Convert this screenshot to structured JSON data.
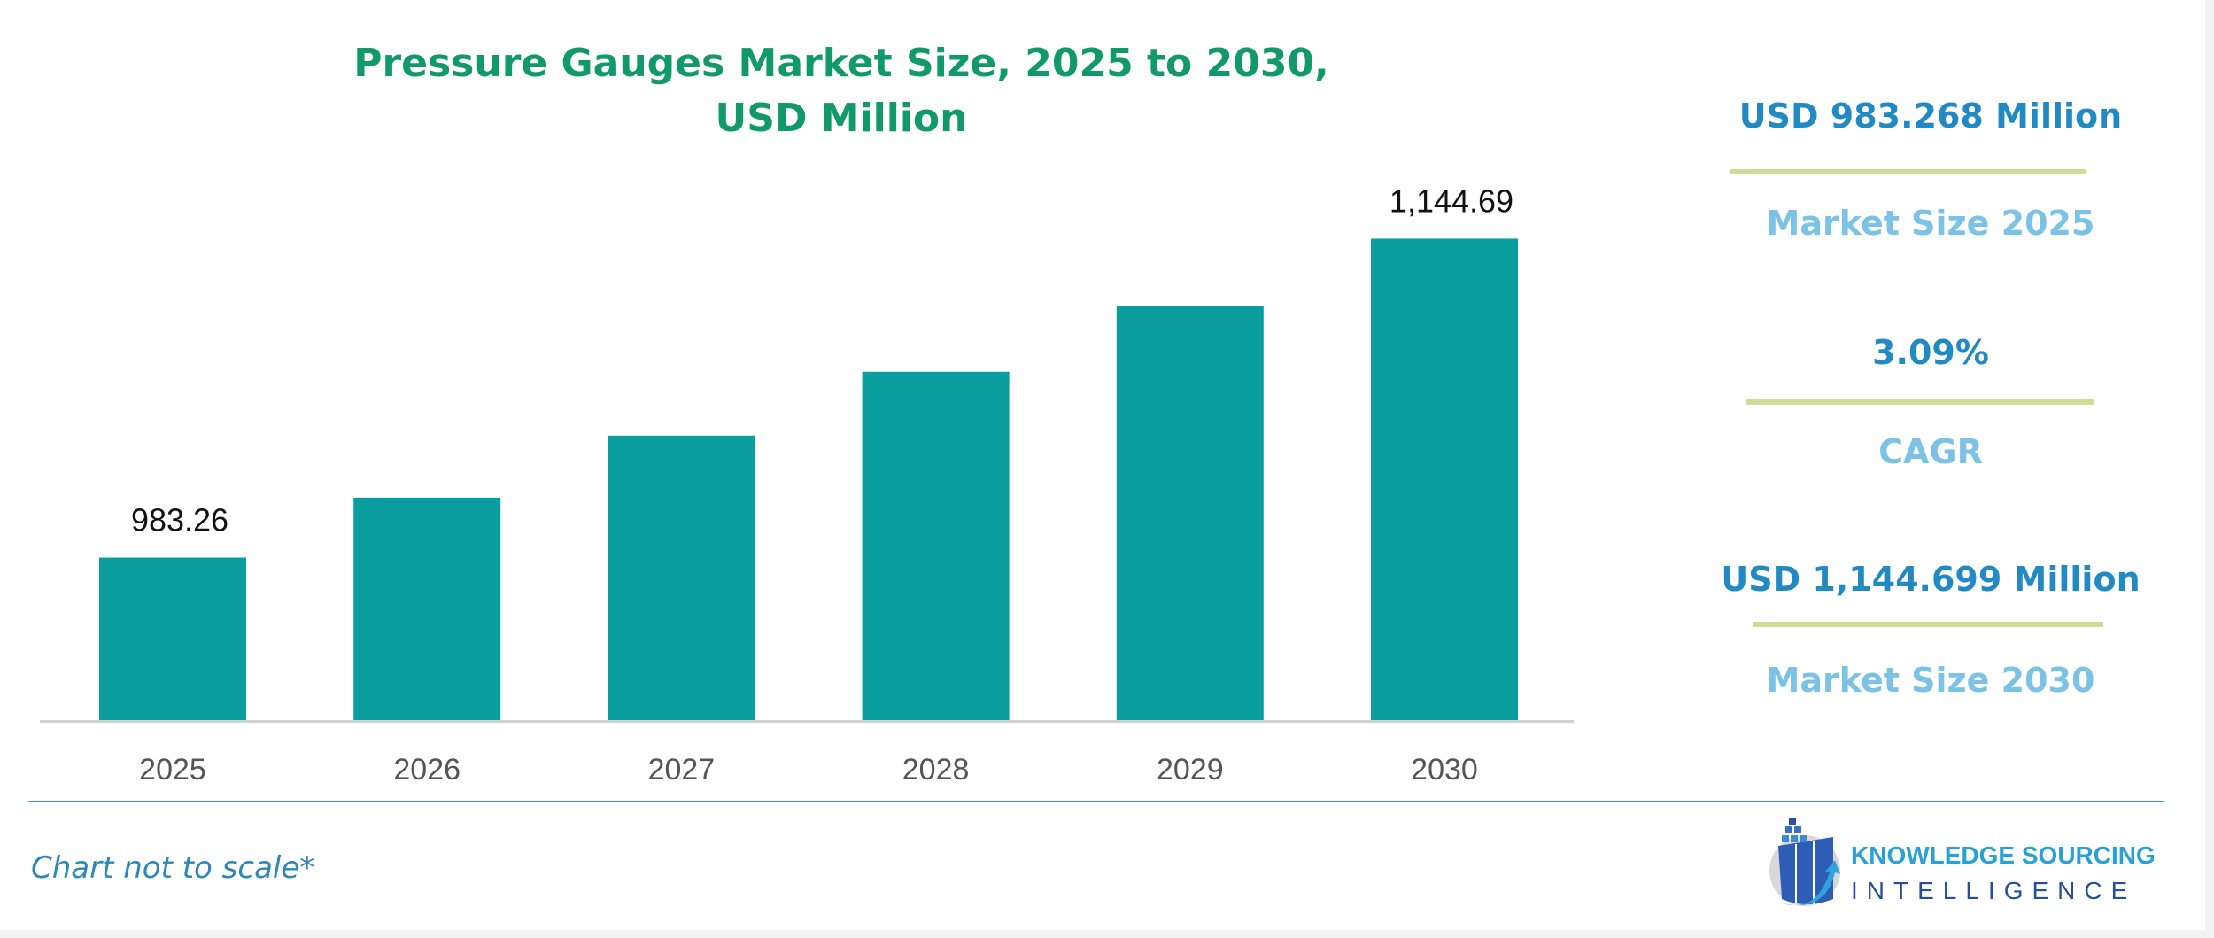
{
  "chart_data": {
    "type": "bar",
    "title": "Pressure Gauges Market Size, 2025 to 2030, USD Million",
    "title_lines": [
      "Pressure Gauges Market Size, 2025 to 2030,",
      "USD Million"
    ],
    "categories": [
      "2025",
      "2026",
      "2027",
      "2028",
      "2029",
      "2030"
    ],
    "values": [
      983.26,
      1013.6,
      1045.0,
      1077.3,
      1110.5,
      1144.69
    ],
    "data_labels": [
      "983.26",
      "",
      "",
      "",
      "",
      "1,144.69"
    ],
    "xlabel": "",
    "ylabel": "",
    "ylim": [
      901,
      1170
    ],
    "grid": false,
    "legend": "none",
    "bar_color": "#0a9e9f"
  },
  "summary": {
    "start_value": "USD 983.268 Million",
    "start_label": "Market Size 2025",
    "cagr_value": "3.09%",
    "cagr_label": "CAGR",
    "end_value": "USD 1,144.699 Million",
    "end_label": "Market Size 2030"
  },
  "footnote": "Chart not to scale*",
  "logo": {
    "line1": "KNOWLEDGE SOURCING",
    "line2": "INTELLIGENCE"
  },
  "colors": {
    "title": "#12996b",
    "value": "#2189c4",
    "label": "#7cc1e6",
    "rule": "#cfdc95"
  }
}
